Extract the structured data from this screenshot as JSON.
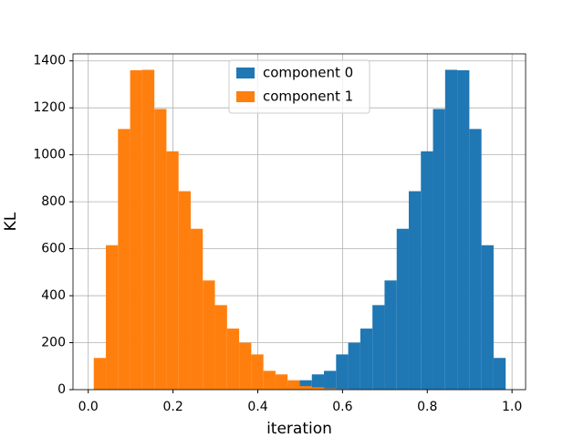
{
  "chart_data": {
    "type": "histogram",
    "xlabel": "iteration",
    "ylabel": "KL",
    "bins": [
      0.013,
      0.0416,
      0.0702,
      0.0988,
      0.1274,
      0.156,
      0.1845,
      0.2131,
      0.2417,
      0.2703,
      0.2989,
      0.3275,
      0.3561,
      0.3847,
      0.4133,
      0.4419,
      0.4704,
      0.499,
      0.5276,
      0.5562,
      0.5848,
      0.6134,
      0.642,
      0.6706,
      0.6992,
      0.7278,
      0.7563,
      0.7849,
      0.8135,
      0.8421,
      0.8707,
      0.8993,
      0.9279,
      0.9565,
      0.985
    ],
    "series": [
      {
        "name": "component 0",
        "color": "#1f77b4",
        "values": [
          0,
          0,
          0,
          0,
          0,
          0,
          0,
          0,
          0,
          0,
          0,
          1,
          2,
          3,
          5,
          10,
          15,
          40,
          65,
          80,
          150,
          200,
          260,
          360,
          465,
          685,
          845,
          1015,
          1195,
          1362,
          1360,
          1110,
          615,
          135
        ]
      },
      {
        "name": "component 1",
        "color": "#ff7f0e",
        "values": [
          135,
          615,
          1110,
          1360,
          1362,
          1195,
          1015,
          845,
          685,
          465,
          360,
          260,
          200,
          150,
          80,
          65,
          40,
          15,
          10,
          5,
          3,
          2,
          1,
          0,
          0,
          0,
          0,
          0,
          0,
          0,
          0,
          0,
          0,
          0
        ]
      }
    ],
    "xlim": [
      -0.036,
      1.032
    ],
    "ylim": [
      0,
      1430
    ],
    "xticks": [
      {
        "value": 0,
        "label": "0.0"
      },
      0.2,
      0.4,
      0.6,
      0.8,
      {
        "value": 1,
        "label": "1.0"
      }
    ],
    "yticks": [
      0,
      200,
      400,
      600,
      800,
      1000,
      1200,
      1400
    ],
    "grid": true,
    "legend": "upper center"
  }
}
